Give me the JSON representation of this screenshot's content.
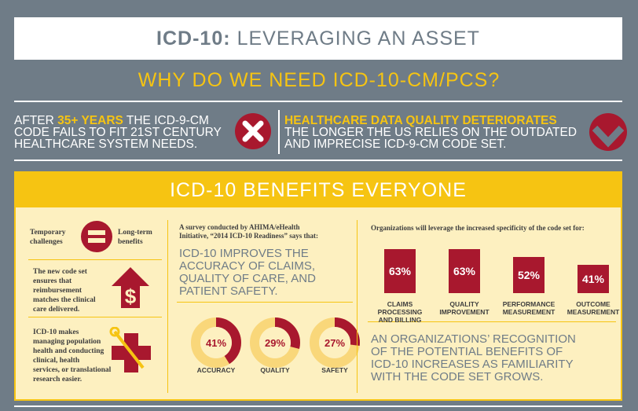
{
  "header": {
    "title_bold": "ICD-10:",
    "title_rest": "LEVERAGING AN ASSET",
    "subtitle": "WHY DO WE NEED ICD-10-CM/PCS?"
  },
  "facts": {
    "left": {
      "line1_pre": "AFTER ",
      "line1_highlight": "35+ YEARS",
      "line1_post": " THE ICD-9-CM",
      "line2": "CODE FAILS TO FIT 21ST CENTURY",
      "line3": "HEALTHCARE SYSTEM NEEDS.",
      "icon": "x-circle-icon"
    },
    "right": {
      "headline": "HEALTHCARE DATA QUALITY DETERIORATES",
      "line2": "THE LONGER THE US RELIES ON THE OUTDATED",
      "line3": "AND IMPRECISE ICD-9-CM CODE SET.",
      "icon": "down-arrow-circle-icon"
    }
  },
  "benefits": {
    "heading": "ICD-10 BENEFITS EVERYONE",
    "left_column": {
      "temporary": [
        "Temporary",
        "challenges"
      ],
      "longterm": [
        "Long-term",
        "benefits"
      ],
      "reimbursement": [
        "The new code set",
        "ensures that",
        "reimbursement",
        "matches the clinical",
        "care delivered."
      ],
      "research": [
        "ICD-10 makes",
        "managing population",
        "health and conducting",
        "clinical, health",
        "services, or translational",
        "research easier."
      ]
    },
    "survey": {
      "intro": [
        "A survey conducted by AHIMA/eHealth",
        "Initiative, “2014 ICD-10 Readiness” says that:"
      ],
      "headline": [
        "ICD-10 IMPROVES THE",
        "ACCURACY OF CLAIMS,",
        "QUALITY OF CARE, AND",
        "PATIENT SAFETY."
      ]
    },
    "orgs": {
      "intro": "Organizations will leverage the increased specificity of the code set for:",
      "conclusion": [
        "AN ORGANIZATIONS’ RECOGNITION",
        "OF THE POTENTIAL BENEFITS OF",
        "ICD-10 INCREASES AS FAMILIARITY",
        "WITH THE CODE SET GROWS."
      ]
    }
  },
  "colors": {
    "accent_yellow": "#f6c412",
    "accent_red": "#a8182e",
    "slate": "#6f7c87",
    "cream": "#fdf0c0"
  },
  "chart_data": [
    {
      "type": "bar",
      "categories": [
        "CLAIMS PROCESSING AND BILLING",
        "QUALITY IMPROVEMENT",
        "PERFORMANCE MEASUREMENT",
        "OUTCOME MEASUREMENT"
      ],
      "category_lines": [
        [
          "CLAIMS PROCESSING",
          "AND BILLING"
        ],
        [
          "QUALITY",
          "IMPROVEMENT"
        ],
        [
          "PERFORMANCE",
          "MEASUREMENT"
        ],
        [
          "OUTCOME",
          "MEASUREMENT"
        ]
      ],
      "values": [
        63,
        63,
        52,
        41
      ],
      "labels": [
        "63%",
        "63%",
        "52%",
        "41%"
      ],
      "ylim": [
        0,
        100
      ]
    },
    {
      "type": "pie",
      "categories": [
        "ACCURACY",
        "QUALITY",
        "SAFETY"
      ],
      "values": [
        41,
        29,
        27
      ],
      "labels": [
        "41%",
        "29%",
        "27%"
      ]
    }
  ]
}
